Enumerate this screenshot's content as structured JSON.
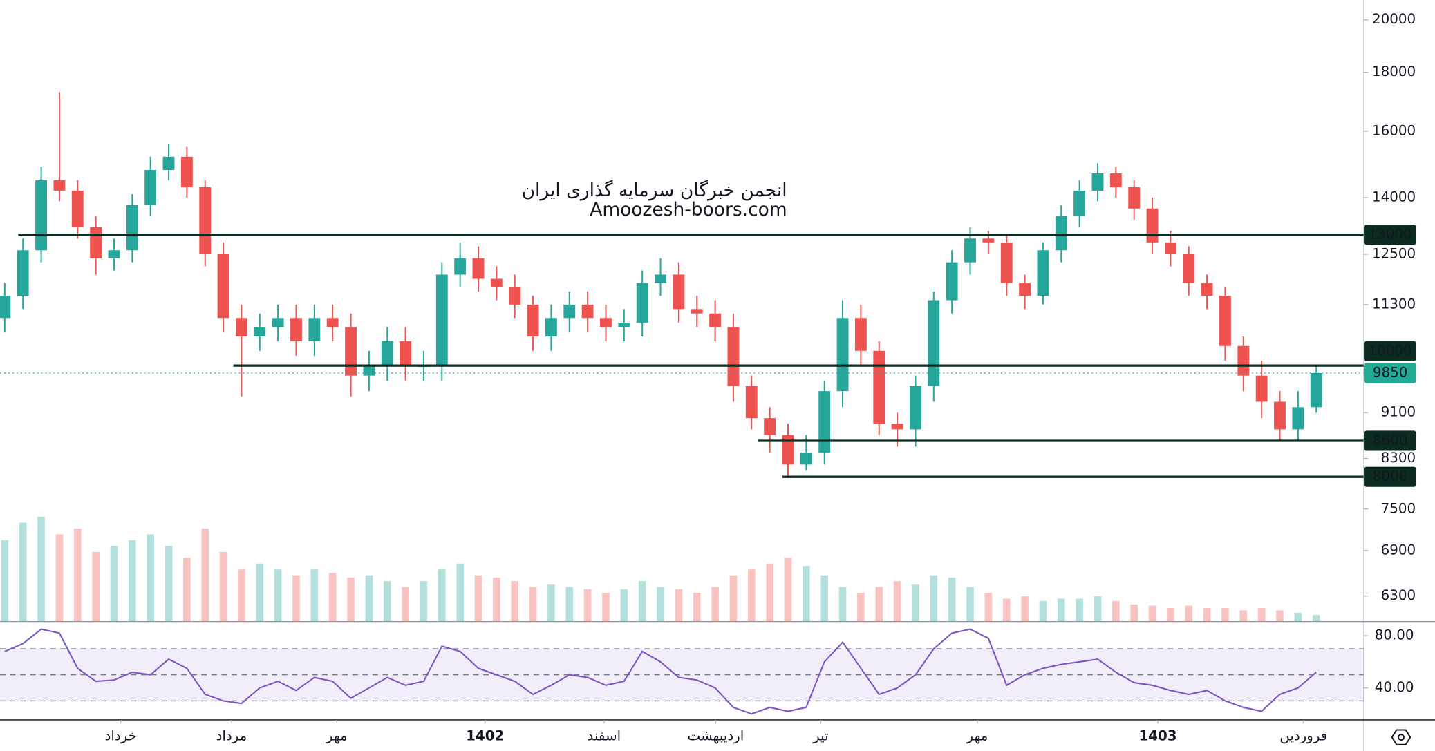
{
  "chart_data": {
    "type": "candlestick",
    "title": "انجمن خبرگان سرمایه گذاری ایران",
    "subtitle": "Amoozesh-boors.com",
    "log_scale": true,
    "open": [
      11000,
      11500,
      12600,
      14500,
      14200,
      13200,
      12400,
      12600,
      13800,
      14800,
      15200,
      14300,
      12500,
      11000,
      10600,
      10800,
      11000,
      10500,
      11000,
      10800,
      9800,
      10000,
      10500,
      10000,
      10000,
      12000,
      12400,
      11900,
      11700,
      11300,
      10600,
      11000,
      11300,
      11000,
      10800,
      10900,
      11800,
      12000,
      11200,
      11100,
      10800,
      9600,
      9000,
      8700,
      8200,
      8400,
      9500,
      11000,
      10300,
      8900,
      8800,
      9600,
      11400,
      12300,
      12900,
      12800,
      11800,
      11500,
      12600,
      13500,
      14200,
      14700,
      14300,
      13700,
      12800,
      12500,
      11800,
      11500,
      10400,
      9800,
      9300,
      8800,
      9200
    ],
    "high": [
      11800,
      12900,
      14900,
      17300,
      14500,
      13500,
      12900,
      14100,
      15200,
      15600,
      15500,
      14500,
      12800,
      11300,
      11100,
      11300,
      11300,
      11300,
      11300,
      11100,
      10300,
      10800,
      10800,
      10300,
      12300,
      12800,
      12700,
      12200,
      12000,
      11500,
      11300,
      11600,
      11600,
      11300,
      11200,
      12100,
      12400,
      12300,
      11500,
      11400,
      11100,
      9800,
      9200,
      8900,
      8700,
      9700,
      11400,
      11300,
      10500,
      9100,
      9800,
      11600,
      12600,
      13200,
      13100,
      13000,
      12000,
      12800,
      13800,
      14500,
      15000,
      14900,
      14500,
      14000,
      13100,
      12700,
      12000,
      11700,
      10600,
      10100,
      9500,
      9500,
      10000
    ],
    "low": [
      10700,
      11200,
      12300,
      13900,
      12900,
      12000,
      12100,
      12300,
      13500,
      14500,
      14000,
      12200,
      10700,
      9400,
      10300,
      10500,
      10200,
      10200,
      10500,
      9400,
      9500,
      9700,
      9700,
      9700,
      9700,
      11700,
      11600,
      11400,
      11000,
      10300,
      10300,
      10700,
      10700,
      10500,
      10500,
      10600,
      11500,
      10900,
      10800,
      10500,
      9300,
      8800,
      8400,
      8000,
      8100,
      8200,
      9200,
      10000,
      8700,
      8500,
      8500,
      9300,
      11100,
      12000,
      12500,
      11500,
      11200,
      11300,
      12300,
      13200,
      13900,
      14000,
      13400,
      12500,
      12200,
      11500,
      11200,
      10100,
      9500,
      9000,
      8600,
      8600,
      9100
    ],
    "close": [
      11500,
      12600,
      14500,
      14200,
      13200,
      12400,
      12600,
      13800,
      14800,
      15200,
      14300,
      12500,
      11000,
      10600,
      10800,
      11000,
      10500,
      11000,
      10800,
      9800,
      10000,
      10500,
      10000,
      10000,
      12000,
      12400,
      11900,
      11700,
      11300,
      10600,
      11000,
      11300,
      11000,
      10800,
      10900,
      11800,
      12000,
      11200,
      11100,
      10800,
      9600,
      9000,
      8700,
      8200,
      8400,
      9500,
      11000,
      10300,
      8900,
      8800,
      9600,
      11400,
      12300,
      12900,
      12800,
      11800,
      11500,
      12600,
      13500,
      14200,
      14700,
      14300,
      13700,
      12800,
      12500,
      11800,
      11500,
      10400,
      9800,
      9300,
      8800,
      9200,
      9850
    ],
    "volume": [
      70,
      85,
      90,
      75,
      80,
      60,
      65,
      70,
      75,
      65,
      55,
      80,
      60,
      45,
      50,
      45,
      40,
      45,
      42,
      38,
      40,
      35,
      30,
      35,
      45,
      50,
      40,
      38,
      35,
      30,
      32,
      30,
      28,
      25,
      28,
      35,
      30,
      28,
      25,
      30,
      40,
      45,
      50,
      55,
      48,
      40,
      30,
      25,
      30,
      35,
      32,
      40,
      38,
      30,
      25,
      20,
      22,
      18,
      20,
      20,
      22,
      18,
      15,
      14,
      12,
      14,
      12,
      12,
      10,
      12,
      10,
      8,
      6
    ],
    "up_color": "#26a69a",
    "down_color": "#ef5350",
    "xlim": [
      -0.26,
      74.6
    ],
    "xticks": [
      {
        "value": 6.37,
        "label": "خرداد"
      },
      {
        "value": 12.45,
        "label": "مرداد"
      },
      {
        "value": 18.23,
        "label": "مهر"
      },
      {
        "value": 26.37,
        "label": "1402"
      },
      {
        "value": 32.9,
        "label": "اسفند"
      },
      {
        "value": 39.03,
        "label": "اردیبهشت"
      },
      {
        "value": 44.8,
        "label": "تیر"
      },
      {
        "value": 53.4,
        "label": "مهر"
      },
      {
        "value": 63.3,
        "label": "1403"
      },
      {
        "value": 71.3,
        "label": "فروردین"
      }
    ],
    "ylim": [
      5980,
      20810
    ],
    "yticks": [
      20000,
      18000,
      16000,
      14000,
      12500,
      11300,
      9100,
      8300,
      7500,
      6900,
      6300
    ],
    "levels": [
      {
        "value": 13000,
        "start": 0.74
      },
      {
        "value": 10000,
        "start": 12.55
      },
      {
        "value": 8600,
        "start": 41.34
      },
      {
        "value": 8000,
        "start": 42.7
      }
    ],
    "level_color": "#0b2b20",
    "last": 9850,
    "last_color": "#22ab94",
    "rsi": {
      "values": [
        68,
        74,
        85,
        82,
        55,
        45,
        46,
        52,
        50,
        62,
        55,
        35,
        30,
        28,
        40,
        45,
        38,
        48,
        45,
        32,
        40,
        48,
        42,
        45,
        72,
        68,
        55,
        50,
        45,
        35,
        42,
        50,
        48,
        42,
        45,
        68,
        60,
        48,
        46,
        40,
        25,
        20,
        25,
        22,
        25,
        60,
        75,
        55,
        35,
        40,
        50,
        70,
        82,
        85,
        78,
        42,
        50,
        55,
        58,
        60,
        62,
        52,
        44,
        42,
        38,
        35,
        38,
        30,
        25,
        22,
        35,
        40,
        52
      ],
      "color": "#7e57c2",
      "ylim": [
        15.4,
        90.5
      ],
      "yticks": [
        {
          "value": 80,
          "label": "80.00"
        },
        {
          "value": 40,
          "label": "40.00"
        }
      ],
      "band": [
        30,
        70
      ],
      "levels": [
        70,
        50,
        30
      ]
    }
  }
}
